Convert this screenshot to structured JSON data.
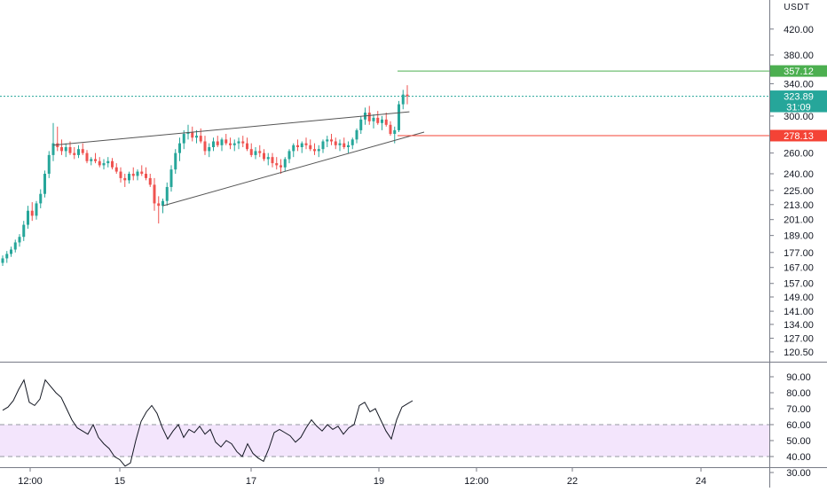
{
  "currency_label": "USDT",
  "colors": {
    "up": "#26a69a",
    "down": "#ef5350",
    "target": "#4caf50",
    "stop": "#f44336",
    "rsi_line": "#131722",
    "rsi_band_fill": "#f3e5fc",
    "grid_line": "#787b86",
    "trendline": "#555555"
  },
  "price_axis": {
    "ticks": [
      "420.00",
      "380.00",
      "340.00",
      "300.00",
      "260.00",
      "240.00",
      "225.00",
      "213.00",
      "201.00",
      "189.00",
      "177.00",
      "167.00",
      "157.00",
      "149.00",
      "141.00",
      "134.00",
      "127.00",
      "120.50"
    ],
    "scale": "log"
  },
  "rsi_axis": {
    "ticks": [
      "90.00",
      "80.00",
      "70.00",
      "60.00",
      "50.00",
      "40.00",
      "30.00"
    ],
    "band": [
      40,
      60
    ]
  },
  "time_axis": {
    "labels": [
      "12:00",
      "15",
      "17",
      "19",
      "12:00",
      "22",
      "24"
    ]
  },
  "tags": {
    "target": {
      "label": "357.12",
      "price": 357.12
    },
    "current": {
      "label": "323.89",
      "price": 323.89
    },
    "countdown": {
      "label": "31:09"
    },
    "stop": {
      "label": "278.13",
      "price": 278.13
    }
  },
  "chart_data": {
    "type": "candlestick",
    "ylim": [
      116,
      470
    ],
    "y_scale": "log",
    "x_ticks": [
      "12:00",
      "15",
      "17",
      "19",
      "12:00",
      "22",
      "24"
    ],
    "candles_ohlc": [
      [
        170,
        175,
        168,
        173
      ],
      [
        173,
        178,
        170,
        176
      ],
      [
        176,
        181,
        174,
        179
      ],
      [
        179,
        186,
        177,
        184
      ],
      [
        184,
        190,
        181,
        188
      ],
      [
        188,
        200,
        185,
        197
      ],
      [
        197,
        212,
        194,
        208
      ],
      [
        208,
        215,
        200,
        204
      ],
      [
        204,
        216,
        201,
        214
      ],
      [
        214,
        226,
        210,
        222
      ],
      [
        222,
        243,
        219,
        240
      ],
      [
        240,
        262,
        236,
        258
      ],
      [
        258,
        292,
        252,
        270
      ],
      [
        270,
        288,
        262,
        266
      ],
      [
        266,
        274,
        258,
        262
      ],
      [
        262,
        270,
        256,
        266
      ],
      [
        266,
        272,
        258,
        260
      ],
      [
        260,
        266,
        254,
        258
      ],
      [
        258,
        268,
        255,
        264
      ],
      [
        264,
        270,
        258,
        260
      ],
      [
        260,
        263,
        250,
        252
      ],
      [
        252,
        256,
        248,
        254
      ],
      [
        254,
        260,
        250,
        252
      ],
      [
        252,
        256,
        246,
        248
      ],
      [
        248,
        254,
        244,
        250
      ],
      [
        250,
        256,
        246,
        252
      ],
      [
        252,
        255,
        244,
        246
      ],
      [
        246,
        250,
        240,
        242
      ],
      [
        242,
        246,
        232,
        236
      ],
      [
        236,
        240,
        228,
        234
      ],
      [
        234,
        242,
        231,
        240
      ],
      [
        240,
        246,
        234,
        238
      ],
      [
        238,
        244,
        234,
        242
      ],
      [
        242,
        248,
        238,
        240
      ],
      [
        240,
        246,
        234,
        236
      ],
      [
        236,
        240,
        228,
        230
      ],
      [
        230,
        236,
        208,
        214
      ],
      [
        214,
        220,
        198,
        212
      ],
      [
        212,
        218,
        206,
        216
      ],
      [
        216,
        232,
        212,
        228
      ],
      [
        228,
        248,
        224,
        244
      ],
      [
        244,
        264,
        240,
        260
      ],
      [
        260,
        276,
        252,
        270
      ],
      [
        270,
        284,
        264,
        280
      ],
      [
        280,
        290,
        274,
        282
      ],
      [
        282,
        288,
        272,
        276
      ],
      [
        276,
        284,
        270,
        278
      ],
      [
        278,
        286,
        270,
        272
      ],
      [
        272,
        278,
        258,
        262
      ],
      [
        262,
        270,
        256,
        266
      ],
      [
        266,
        276,
        262,
        272
      ],
      [
        272,
        278,
        266,
        268
      ],
      [
        268,
        276,
        262,
        274
      ],
      [
        274,
        280,
        268,
        270
      ],
      [
        270,
        276,
        264,
        268
      ],
      [
        268,
        274,
        262,
        270
      ],
      [
        270,
        276,
        264,
        272
      ],
      [
        272,
        278,
        266,
        270
      ],
      [
        270,
        276,
        262,
        264
      ],
      [
        264,
        270,
        256,
        258
      ],
      [
        258,
        266,
        254,
        262
      ],
      [
        262,
        268,
        256,
        260
      ],
      [
        260,
        264,
        252,
        254
      ],
      [
        254,
        260,
        248,
        256
      ],
      [
        256,
        260,
        246,
        250
      ],
      [
        250,
        256,
        244,
        248
      ],
      [
        248,
        254,
        240,
        246
      ],
      [
        246,
        256,
        242,
        254
      ],
      [
        254,
        264,
        250,
        262
      ],
      [
        262,
        270,
        256,
        268
      ],
      [
        268,
        274,
        262,
        266
      ],
      [
        266,
        272,
        260,
        270
      ],
      [
        270,
        276,
        264,
        268
      ],
      [
        268,
        274,
        262,
        264
      ],
      [
        264,
        270,
        258,
        262
      ],
      [
        262,
        268,
        256,
        264
      ],
      [
        264,
        274,
        260,
        272
      ],
      [
        272,
        278,
        266,
        274
      ],
      [
        274,
        280,
        268,
        272
      ],
      [
        272,
        276,
        264,
        268
      ],
      [
        268,
        274,
        262,
        270
      ],
      [
        270,
        276,
        264,
        266
      ],
      [
        266,
        272,
        260,
        268
      ],
      [
        268,
        276,
        264,
        274
      ],
      [
        274,
        286,
        270,
        284
      ],
      [
        284,
        300,
        280,
        296
      ],
      [
        296,
        310,
        290,
        304
      ],
      [
        304,
        312,
        290,
        294
      ],
      [
        294,
        302,
        286,
        298
      ],
      [
        298,
        306,
        290,
        292
      ],
      [
        292,
        300,
        284,
        296
      ],
      [
        296,
        304,
        288,
        290
      ],
      [
        290,
        294,
        278,
        280
      ],
      [
        280,
        288,
        270,
        284
      ],
      [
        284,
        318,
        282,
        314
      ],
      [
        314,
        332,
        308,
        326
      ],
      [
        326,
        338,
        314,
        324
      ]
    ],
    "rsi": [
      69,
      71,
      75,
      82,
      88,
      74,
      72,
      76,
      88,
      84,
      80,
      77,
      70,
      63,
      58,
      56,
      54,
      60,
      52,
      48,
      45,
      40,
      38,
      34,
      36,
      50,
      62,
      68,
      72,
      67,
      58,
      51,
      56,
      60,
      52,
      57,
      55,
      59,
      54,
      57,
      49,
      46,
      50,
      48,
      43,
      40,
      48,
      42,
      39,
      37,
      45,
      55,
      57,
      55,
      53,
      49,
      52,
      58,
      63,
      59,
      56,
      60,
      57,
      59,
      54,
      58,
      60,
      72,
      74,
      68,
      70,
      63,
      56,
      51,
      63,
      71,
      73,
      75
    ],
    "trendlines": [
      {
        "from": {
          "candle": 12,
          "price": 268
        },
        "to": {
          "candle": 96.5,
          "price": 305
        }
      },
      {
        "from": {
          "candle": 38,
          "price": 212
        },
        "to": {
          "candle": 100,
          "price": 282
        }
      }
    ],
    "horizontal_levels": [
      {
        "name": "target",
        "price": 357.12
      },
      {
        "name": "stop",
        "price": 278.13
      },
      {
        "name": "current",
        "price": 323.89
      }
    ]
  }
}
